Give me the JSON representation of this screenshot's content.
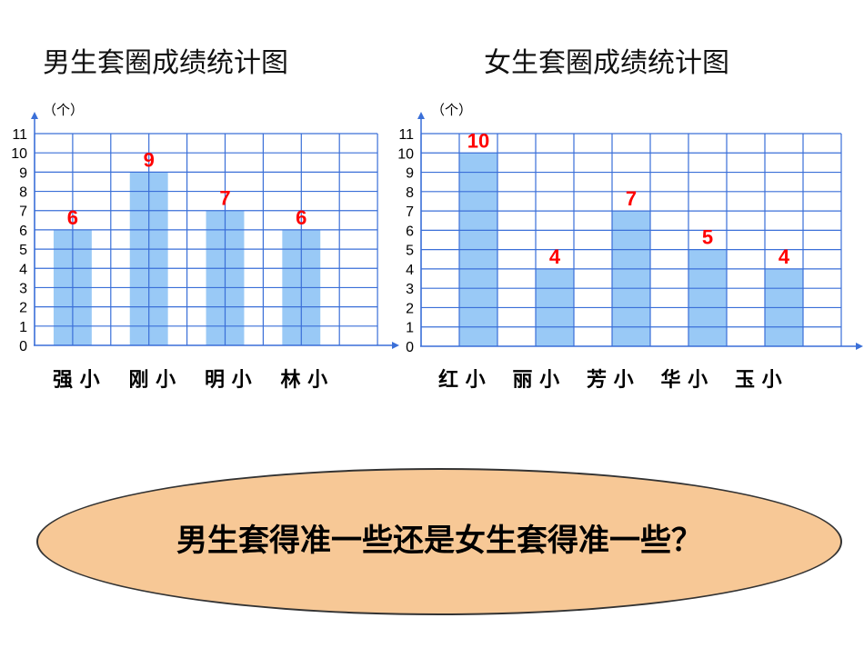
{
  "chart_data": [
    {
      "type": "bar",
      "title": "男生套圈成绩统计图",
      "ylabel": "（个）",
      "ylim": [
        0,
        11
      ],
      "y_ticks": [
        "0",
        "1",
        "2",
        "3",
        "4",
        "5",
        "6",
        "7",
        "8",
        "9",
        "10",
        "11"
      ],
      "categories": [
        "强小",
        "刚小",
        "明小",
        "林小"
      ],
      "x_tick_labels": [
        "强 小",
        "刚 小",
        "明 小",
        "林 小"
      ],
      "values": [
        6,
        9,
        7,
        6
      ],
      "data_labels": [
        "6",
        "9",
        "7",
        "6"
      ],
      "grid": true,
      "bar_color": "#99c9f6",
      "grid_color": "#3a6fd8",
      "label_color": "#ff0000"
    },
    {
      "type": "bar",
      "title": "女生套圈成绩统计图",
      "ylabel": "（个）",
      "ylim": [
        0,
        11
      ],
      "y_ticks": [
        "0",
        "1",
        "2",
        "3",
        "4",
        "5",
        "6",
        "7",
        "8",
        "9",
        "10",
        "11"
      ],
      "categories": [
        "红小",
        "丽小",
        "芳小",
        "华小",
        "玉小"
      ],
      "x_tick_labels": [
        "红 小",
        "丽 小",
        "芳 小",
        "华 小",
        "玉 小"
      ],
      "values": [
        10,
        4,
        7,
        5,
        4
      ],
      "data_labels": [
        "10",
        "4",
        "7",
        "5",
        "4"
      ],
      "grid": true,
      "bar_color": "#99c9f6",
      "grid_color": "#3a6fd8",
      "label_color": "#ff0000"
    }
  ],
  "question": "男生套得准一些还是女生套得准一些？",
  "colors": {
    "ellipse_fill": "#f7c896",
    "axis": "#3a6fd8"
  }
}
